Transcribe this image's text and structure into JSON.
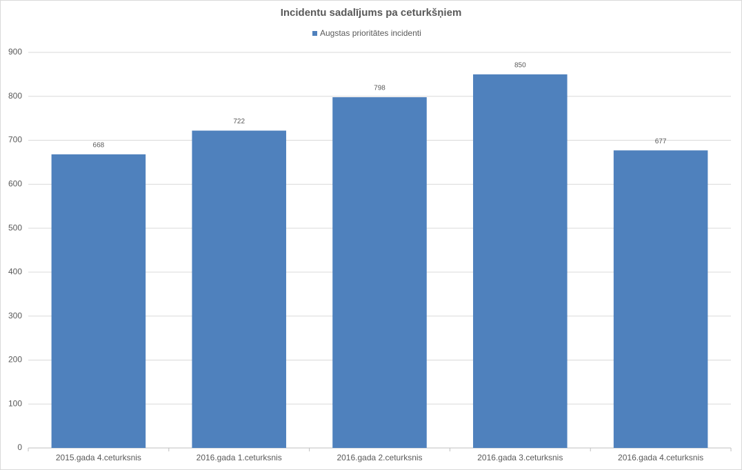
{
  "chart_data": {
    "type": "bar",
    "title": "Incidentu sadalījums pa ceturkšņiem",
    "categories": [
      "2015.gada 4.ceturksnis",
      "2016.gada 1.ceturksnis",
      "2016.gada 2.ceturksnis",
      "2016.gada 3.ceturksnis",
      "2016.gada 4.ceturksnis"
    ],
    "series": [
      {
        "name": "Augstas prioritātes incidenti",
        "color": "#4f81bd",
        "values": [
          668,
          722,
          798,
          850,
          677
        ]
      }
    ],
    "ylim": [
      0,
      900
    ],
    "yticks": [
      0,
      100,
      200,
      300,
      400,
      500,
      600,
      700,
      800,
      900
    ],
    "grid": true,
    "legend": "top"
  }
}
